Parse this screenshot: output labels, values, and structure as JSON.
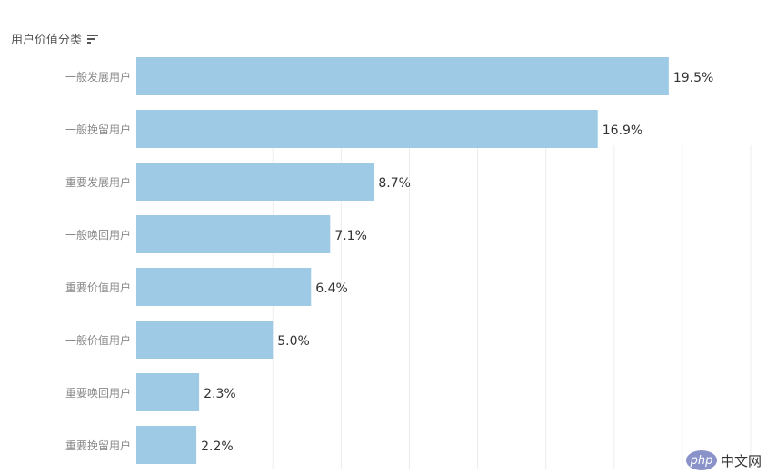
{
  "header": {
    "title": "用户价值分类",
    "sort_icon": "sort-descending-icon"
  },
  "chart_data": {
    "type": "bar",
    "orientation": "horizontal",
    "categories": [
      "一般发展用户",
      "一般挽留用户",
      "重要发展用户",
      "一般唤回用户",
      "重要价值用户",
      "一般价值用户",
      "重要唤回用户",
      "重要挽留用户"
    ],
    "values": [
      19.5,
      16.9,
      8.7,
      7.1,
      6.4,
      5.0,
      2.3,
      2.2
    ],
    "labels": [
      "19.5%",
      "16.9%",
      "8.7%",
      "7.1%",
      "6.4%",
      "5.0%",
      "2.3%",
      "2.2%"
    ],
    "unit": "%",
    "xlim": [
      0,
      22.5
    ],
    "grid": true,
    "bar_color": "#9ecae6",
    "title": "",
    "xlabel": "",
    "ylabel": ""
  },
  "watermark": {
    "badge": "php",
    "text": "中文网"
  }
}
